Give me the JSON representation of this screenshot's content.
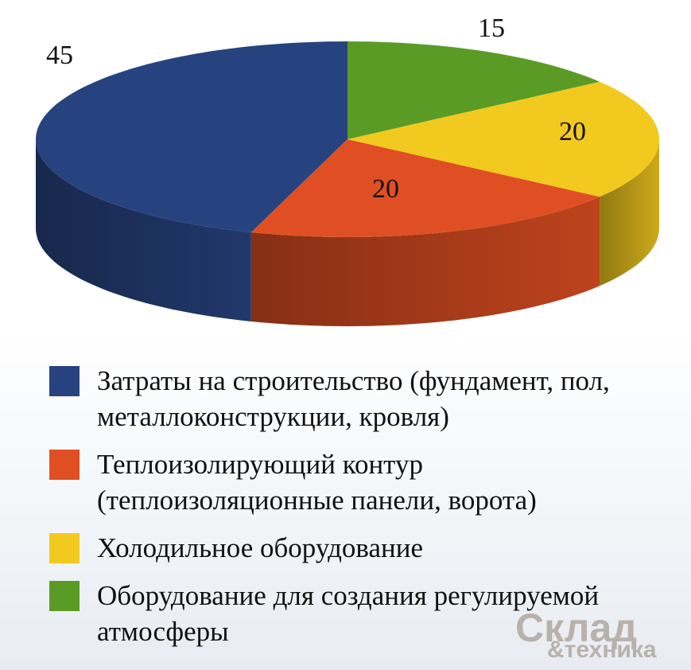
{
  "chart_data": {
    "type": "pie3d",
    "categories": [
      "Затраты на строительство (фундамент, пол, металлоконструкции, кровля)",
      "Теплоизолирующий контур (теплоизоляционные панели, ворота)",
      "Холодильное оборудование",
      "Оборудование для создания регулируемой атмосферы"
    ],
    "values": [
      45,
      20,
      20,
      15
    ],
    "colors": [
      "#27437f",
      "#e04f23",
      "#f2c91f",
      "#5a9b26"
    ]
  },
  "watermark": {
    "line1": "Склад",
    "line2": "&техника"
  }
}
